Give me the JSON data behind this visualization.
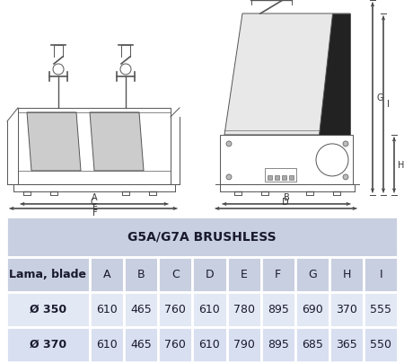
{
  "title": "G5A/G7A BRUSHLESS",
  "col_headers": [
    "Lama, blade",
    "A",
    "B",
    "C",
    "D",
    "E",
    "F",
    "G",
    "H",
    "I"
  ],
  "rows": [
    [
      "Ø 350",
      "610",
      "465",
      "760",
      "610",
      "780",
      "895",
      "690",
      "370",
      "555"
    ],
    [
      "Ø 370",
      "610",
      "465",
      "760",
      "610",
      "790",
      "895",
      "685",
      "365",
      "550"
    ]
  ],
  "header_bg": "#c8cfe0",
  "col_header_bg": "#c8cfe0",
  "row0_bg": "#e2e8f4",
  "row1_bg": "#d8dff0",
  "fig_bg": "#ffffff",
  "header_fontsize": 10,
  "cell_fontsize": 9,
  "title_cell_fontsize": 10
}
